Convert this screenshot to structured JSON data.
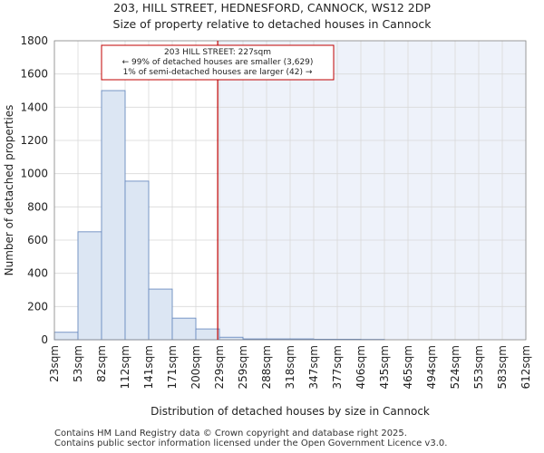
{
  "title": "203, HILL STREET, HEDNESFORD, CANNOCK, WS12 2DP",
  "subtitle": "Size of property relative to detached houses in Cannock",
  "footer": [
    "Contains HM Land Registry data © Crown copyright and database right 2025.",
    "Contains public sector information licensed under the Open Government Licence v3.0."
  ],
  "colors": {
    "bar_fill": "#dce6f3",
    "bar_edge": "#6b8cc0",
    "marker_line": "#c00000",
    "highlight_bg": "#eef2fa"
  },
  "chart_data": {
    "type": "bar",
    "xlabel": "Distribution of detached houses by size in Cannock",
    "ylabel": "Number of detached properties",
    "ylim": [
      0,
      1800
    ],
    "yticks": [
      0,
      200,
      400,
      600,
      800,
      1000,
      1200,
      1400,
      1600,
      1800
    ],
    "xticklabels": [
      "23sqm",
      "53sqm",
      "82sqm",
      "112sqm",
      "141sqm",
      "171sqm",
      "200sqm",
      "229sqm",
      "259sqm",
      "288sqm",
      "318sqm",
      "347sqm",
      "377sqm",
      "406sqm",
      "435sqm",
      "465sqm",
      "494sqm",
      "524sqm",
      "553sqm",
      "583sqm",
      "612sqm"
    ],
    "bin_edges": [
      23,
      53,
      82,
      112,
      141,
      171,
      200,
      229,
      259,
      288,
      318,
      347,
      377,
      406,
      435,
      465,
      494,
      524,
      553,
      583,
      612
    ],
    "values": [
      45,
      650,
      1500,
      955,
      305,
      130,
      65,
      15,
      5,
      5,
      5,
      3,
      3,
      2,
      0,
      0,
      0,
      0,
      0,
      0
    ],
    "marker": {
      "x": 227,
      "label": "203 HILL STREET: 227sqm"
    },
    "annotation": [
      "203 HILL STREET: 227sqm",
      "← 99% of detached houses are smaller (3,629)",
      "1% of semi-detached houses are larger (42) →"
    ],
    "grid": true
  }
}
